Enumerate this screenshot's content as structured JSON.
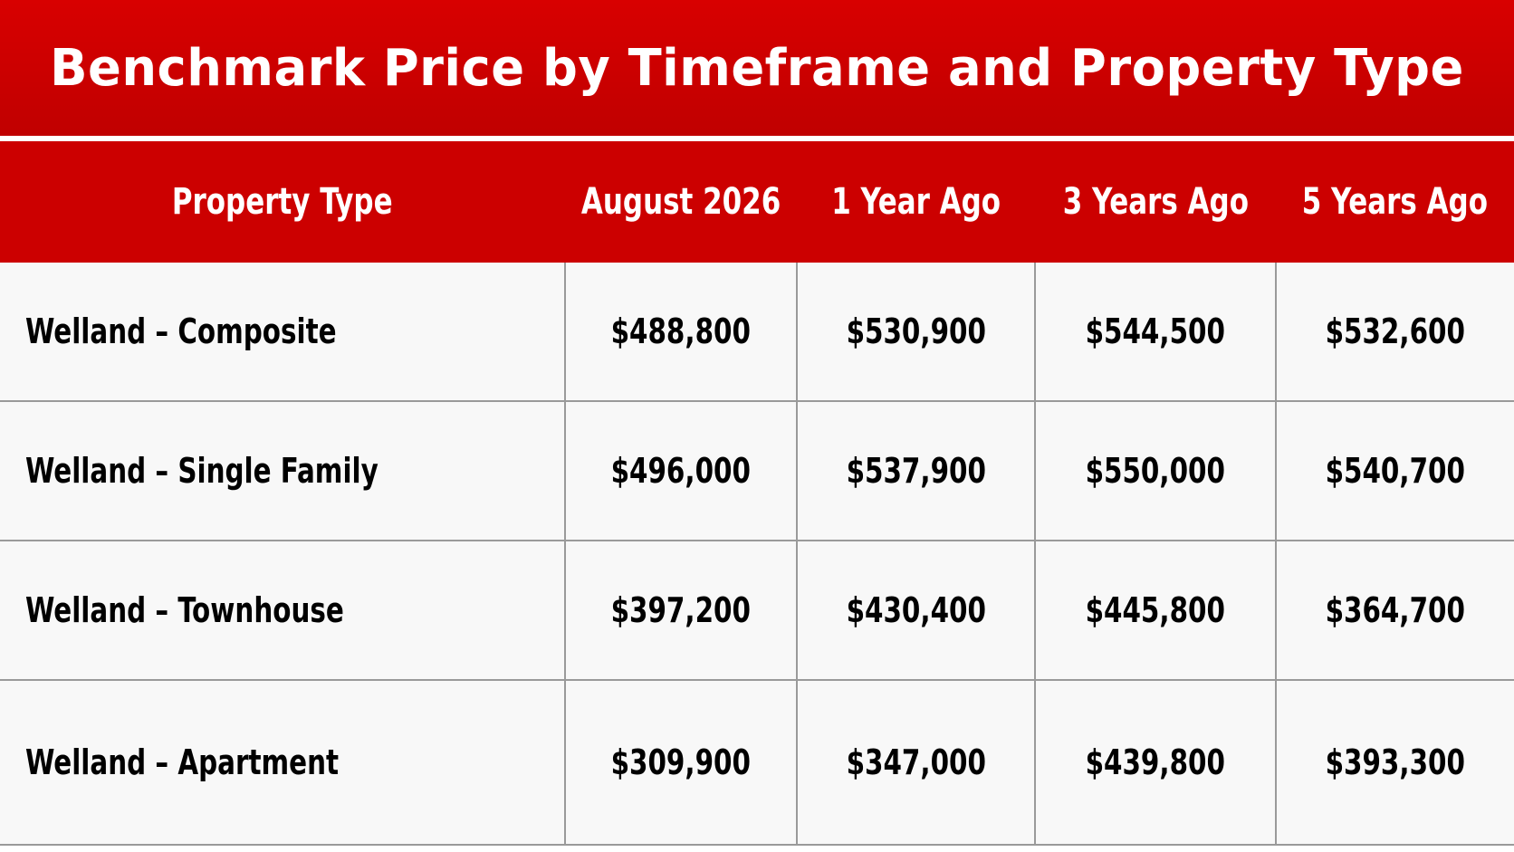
{
  "title": "Benchmark Price by Timeframe and Property Type",
  "colors": {
    "header_red": "#cc0000",
    "title_red": "#d80000",
    "cell_background": "#f8f8f8",
    "grid_line": "#9a9a9a"
  },
  "chart_data": {
    "type": "table",
    "title": "Benchmark Price by Timeframe and Property Type",
    "columns": [
      "Property Type",
      "August 2026",
      "1 Year Ago",
      "3 Years Ago",
      "5 Years Ago"
    ],
    "rows": [
      [
        "Welland – Composite",
        "$488,800",
        "$530,900",
        "$544,500",
        "$532,600"
      ],
      [
        "Welland – Single Family",
        "$496,000",
        "$537,900",
        "$550,000",
        "$540,700"
      ],
      [
        "Welland – Townhouse",
        "$397,200",
        "$430,400",
        "$445,800",
        "$364,700"
      ],
      [
        "Welland – Apartment",
        "$309,900",
        "$347,000",
        "$439,800",
        "$393,300"
      ]
    ]
  }
}
